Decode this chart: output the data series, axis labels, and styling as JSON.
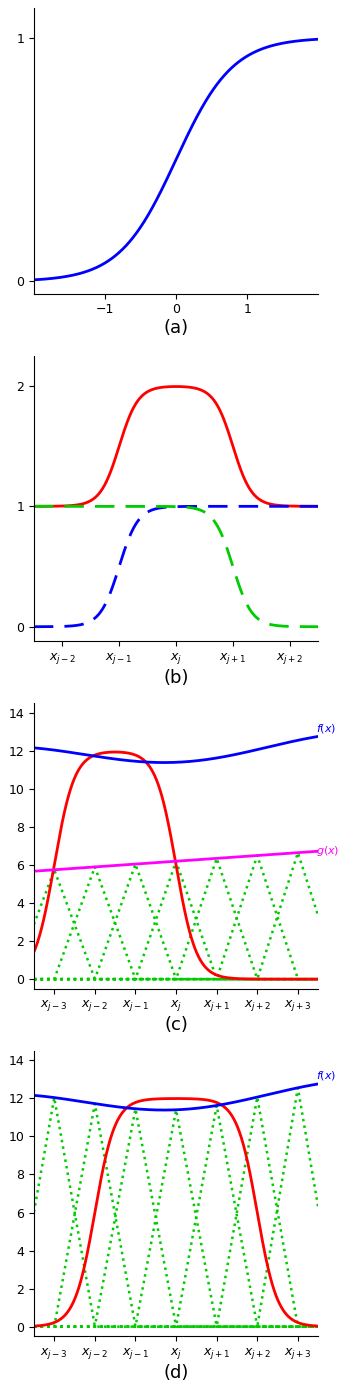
{
  "fig_width": 3.48,
  "fig_height": 13.9,
  "dpi": 100,
  "subplot_a": {
    "title": "(a)",
    "xlim": [
      -2.0,
      2.0
    ],
    "ylim": [
      -0.05,
      1.12
    ],
    "yticks": [
      0,
      1
    ],
    "xticks": [
      -1,
      0,
      1
    ],
    "sigmoid_color": "#0000FF",
    "sigmoid_lw": 2.0,
    "sigmoid_scale": 2.5
  },
  "subplot_b": {
    "title": "(b)",
    "xlim": [
      -2.5,
      2.5
    ],
    "ylim": [
      -0.12,
      2.25
    ],
    "yticks": [
      0,
      1,
      2
    ],
    "xtick_positions": [
      -2,
      -1,
      0,
      1,
      2
    ],
    "xticklabels": [
      "$x_{j-2}$",
      "$x_{j-1}$",
      "$x_{j}$",
      "$x_{j+1}$",
      "$x_{j+2}$"
    ],
    "red_color": "#FF0000",
    "blue_color": "#0000FF",
    "green_color": "#00CC00",
    "lw": 2.0
  },
  "subplot_c": {
    "title": "(c)",
    "xlim": [
      -3.5,
      3.5
    ],
    "ylim": [
      -0.5,
      14.5
    ],
    "yticks": [
      0,
      2,
      4,
      6,
      8,
      10,
      12,
      14
    ],
    "xtick_positions": [
      -3,
      -2,
      -1,
      0,
      1,
      2,
      3
    ],
    "xticklabels": [
      "$x_{j-3}$",
      "$x_{j-2}$",
      "$x_{j-1}$",
      "$x_{j}$",
      "$x_{j+1}$",
      "$x_{j+2}$",
      "$x_{j+3}$"
    ],
    "blue_color": "#0000FF",
    "red_color": "#FF0000",
    "green_color": "#00CC00",
    "magenta_color": "#FF00FF",
    "lw": 2.0,
    "green_lw": 1.8
  },
  "subplot_d": {
    "title": "(d)",
    "xlim": [
      -3.5,
      3.5
    ],
    "ylim": [
      -0.5,
      14.5
    ],
    "yticks": [
      0,
      2,
      4,
      6,
      8,
      10,
      12,
      14
    ],
    "xtick_positions": [
      -3,
      -2,
      -1,
      0,
      1,
      2,
      3
    ],
    "xticklabels": [
      "$x_{j-3}$",
      "$x_{j-2}$",
      "$x_{j-1}$",
      "$x_{j}$",
      "$x_{j+1}$",
      "$x_{j+2}$",
      "$x_{j+3}$"
    ],
    "blue_color": "#0000FF",
    "red_color": "#FF0000",
    "green_color": "#00CC00",
    "lw": 2.0,
    "green_lw": 1.8
  }
}
